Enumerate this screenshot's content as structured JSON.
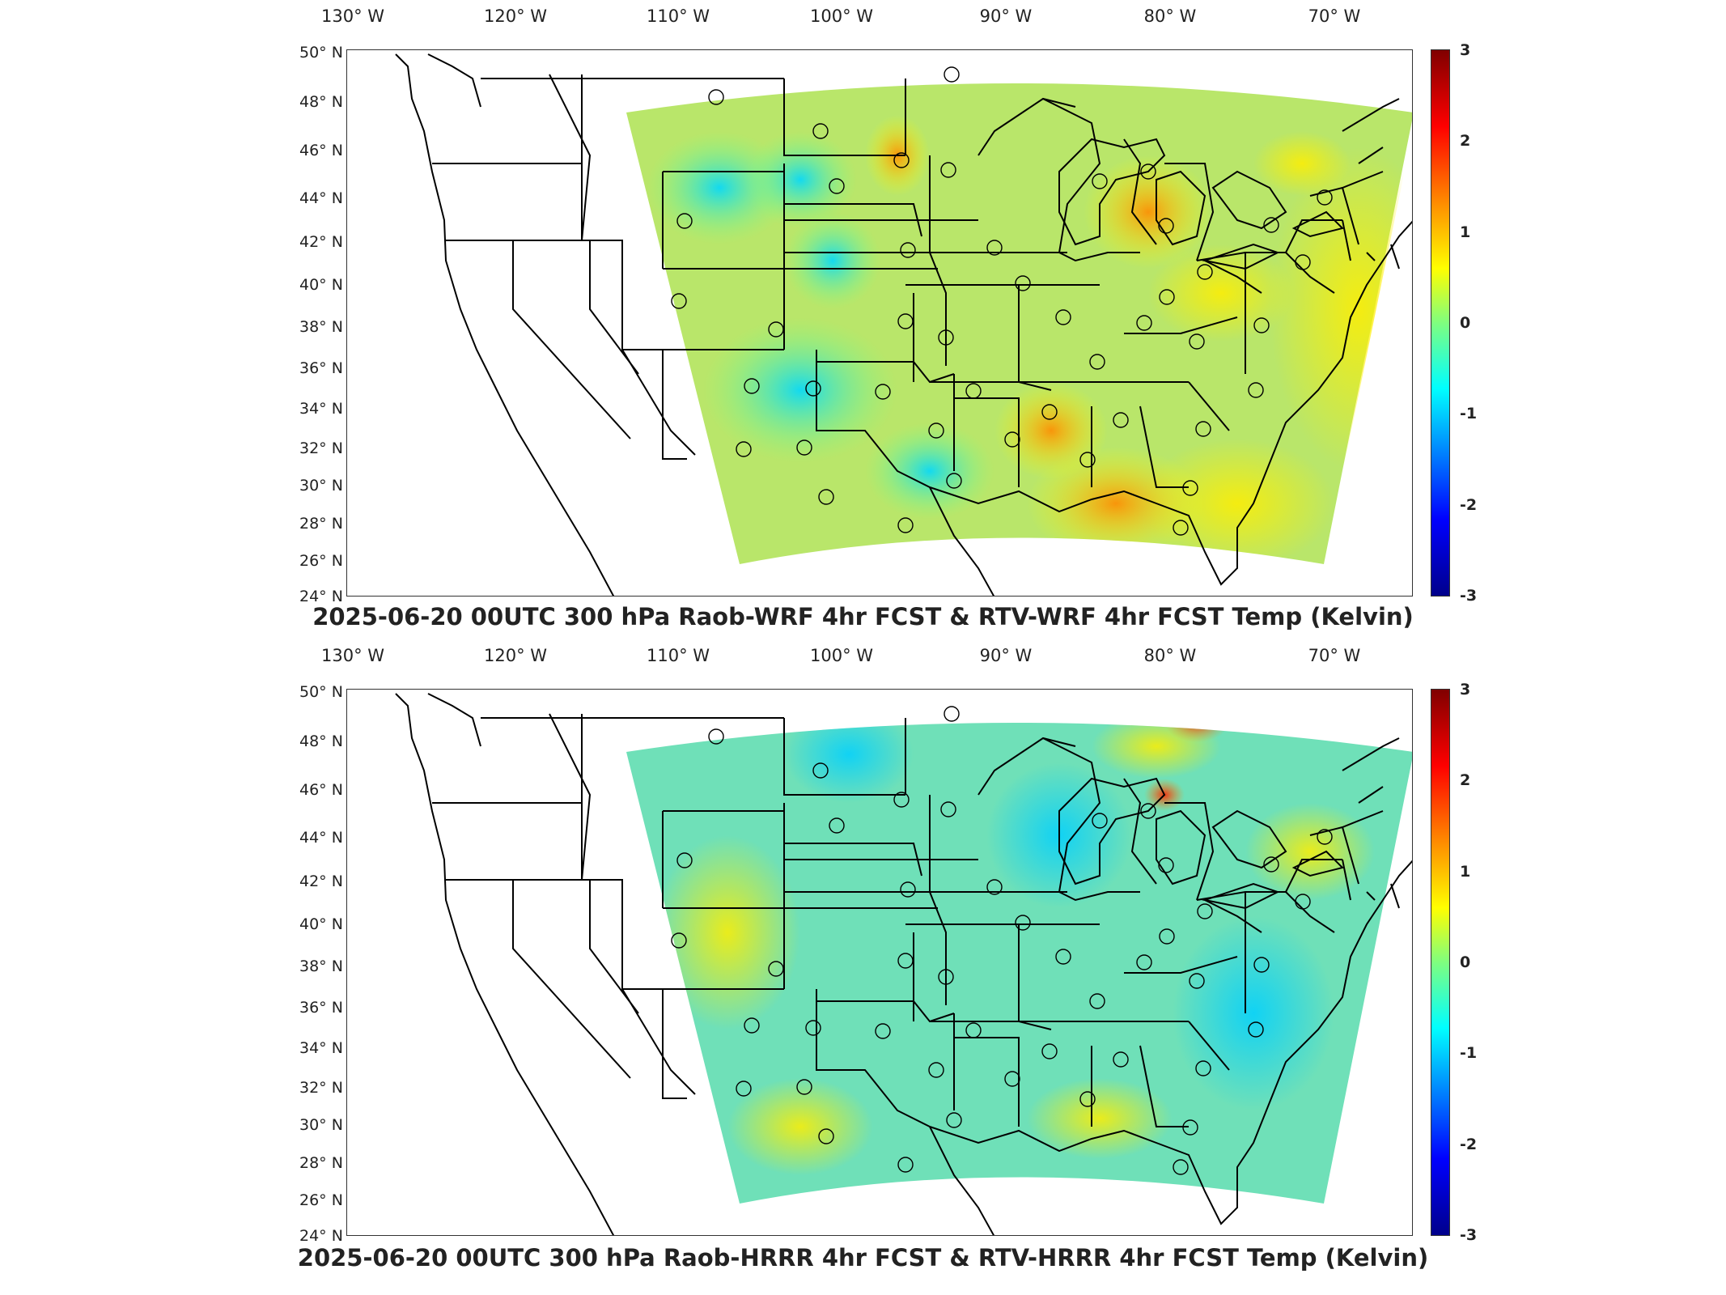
{
  "panels": [
    {
      "title": "2025-06-20 00UTC 300 hPa Raob-WRF 4hr FCST & RTV-WRF 4hr FCST Temp (Kelvin)",
      "lon_labels": [
        "130° W",
        "120° W",
        "110° W",
        "100° W",
        "90° W",
        "80° W",
        "70° W"
      ],
      "lat_labels": [
        "50° N",
        "48° N",
        "46° N",
        "44° N",
        "42° N",
        "40° N",
        "38° N",
        "36° N",
        "34° N",
        "32° N",
        "30° N",
        "28° N",
        "26° N",
        "24° N"
      ],
      "colorbar_ticks": [
        "3",
        "2",
        "1",
        "0",
        "-1",
        "-2",
        "-3"
      ],
      "field_tone": "warm"
    },
    {
      "title": "2025-06-20 00UTC 300 hPa Raob-HRRR 4hr FCST & RTV-HRRR 4hr FCST Temp (Kelvin)",
      "lon_labels": [
        "130° W",
        "120° W",
        "110° W",
        "100° W",
        "90° W",
        "80° W",
        "70° W"
      ],
      "lat_labels": [
        "50° N",
        "48° N",
        "46° N",
        "44° N",
        "42° N",
        "40° N",
        "38° N",
        "36° N",
        "34° N",
        "32° N",
        "30° N",
        "28° N",
        "26° N",
        "24° N"
      ],
      "colorbar_ticks": [
        "3",
        "2",
        "1",
        "0",
        "-1",
        "-2",
        "-3"
      ],
      "field_tone": "cool"
    }
  ],
  "colors": {
    "colormap": [
      "#800000",
      "#ff0000",
      "#ff8c00",
      "#ffff00",
      "#7fff7f",
      "#00ffff",
      "#0080ff",
      "#0000ff",
      "#00008b"
    ],
    "field_warm": "#b9e66a",
    "field_cool": "#6fe0b8",
    "station_marker": "#000000"
  }
}
